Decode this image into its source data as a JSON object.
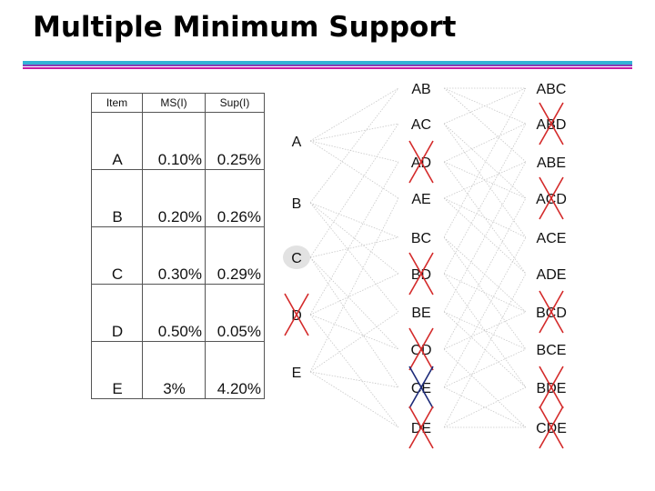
{
  "title": "Multiple Minimum Support",
  "table": {
    "headers": [
      "Item",
      "MS(I)",
      "Sup(I)"
    ],
    "rows": [
      {
        "item": "A",
        "ms": "0.10%",
        "sup": "0.25%"
      },
      {
        "item": "B",
        "ms": "0.20%",
        "sup": "0.26%"
      },
      {
        "item": "C",
        "ms": "0.30%",
        "sup": "0.29%"
      },
      {
        "item": "D",
        "ms": "0.50%",
        "sup": "0.05%"
      },
      {
        "item": "E",
        "ms": "3%",
        "sup": "4.20%"
      }
    ]
  },
  "lattice": {
    "items": [
      {
        "label": "A"
      },
      {
        "label": "B"
      },
      {
        "label": "C",
        "highlight": true
      },
      {
        "label": "D",
        "crossed": "red"
      },
      {
        "label": "E"
      }
    ],
    "pairs": [
      {
        "label": "AB"
      },
      {
        "label": "AC"
      },
      {
        "label": "AD",
        "crossed": "red"
      },
      {
        "label": "AE"
      },
      {
        "label": "BC"
      },
      {
        "label": "BD",
        "crossed": "red"
      },
      {
        "label": "BE"
      },
      {
        "label": "CD",
        "crossed": "red"
      },
      {
        "label": "CE",
        "crossed": "navy"
      },
      {
        "label": "DE",
        "crossed": "red"
      }
    ],
    "triples": [
      {
        "label": "ABC"
      },
      {
        "label": "ABD",
        "crossed": "red"
      },
      {
        "label": "ABE"
      },
      {
        "label": "ACD",
        "crossed": "red"
      },
      {
        "label": "ACE"
      },
      {
        "label": "ADE"
      },
      {
        "label": "BCD",
        "crossed": "red"
      },
      {
        "label": "BCE"
      },
      {
        "label": "BDE",
        "crossed": "red"
      },
      {
        "label": "CDE",
        "crossed": "red"
      }
    ],
    "colors": {
      "red_cross": "#d42a2a",
      "navy_cross": "#1c2a78",
      "edge": "#c8c8c8",
      "highlight": "#e2e2e2"
    }
  }
}
